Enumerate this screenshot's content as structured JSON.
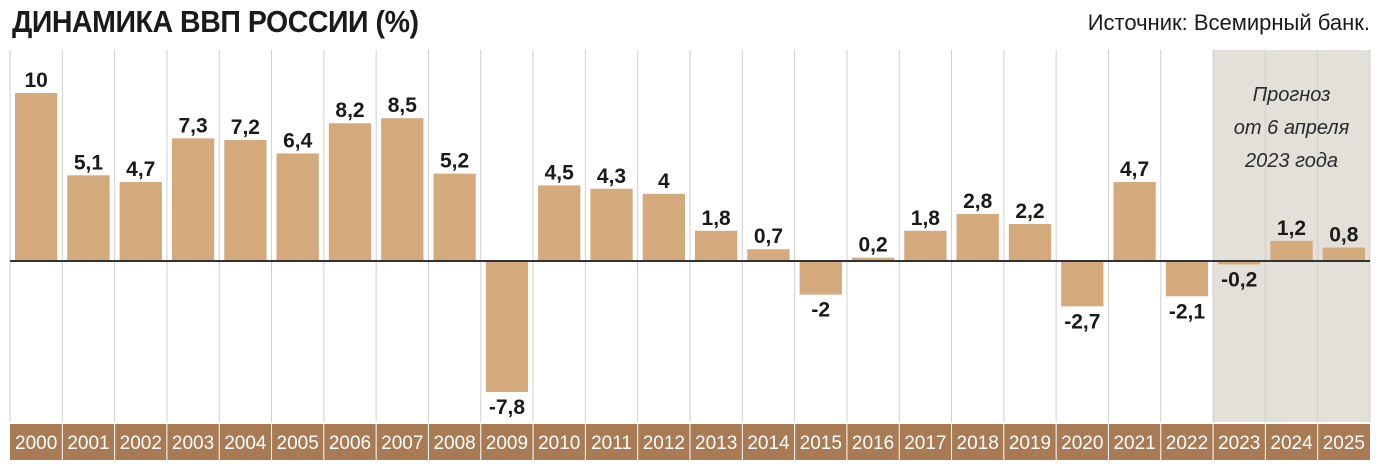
{
  "header": {
    "title": "ДИНАМИКА ВВП РОССИИ (%)",
    "source": "Источник: Всемирный банк."
  },
  "forecast": {
    "lines": [
      "Прогноз",
      "от 6 апреля",
      "2023 года"
    ],
    "first_year": "2023"
  },
  "colors": {
    "bar": "#d4aa7d",
    "bar_border": "#b8875a",
    "year_band": "#a87b55",
    "forecast_bg": "#e2e0d9",
    "grid": "#cfcfcf",
    "axis": "#333333"
  },
  "chart_data": {
    "type": "bar",
    "title": "ДИНАМИКА ВВП РОССИИ (%)",
    "categories": [
      "2000",
      "2001",
      "2002",
      "2003",
      "2004",
      "2005",
      "2006",
      "2007",
      "2008",
      "2009",
      "2010",
      "2011",
      "2012",
      "2013",
      "2014",
      "2015",
      "2016",
      "2017",
      "2018",
      "2019",
      "2020",
      "2021",
      "2022",
      "2023",
      "2024",
      "2025"
    ],
    "values": [
      10,
      5.1,
      4.7,
      7.3,
      7.2,
      6.4,
      8.2,
      8.5,
      5.2,
      -7.8,
      4.5,
      4.3,
      4,
      1.8,
      0.7,
      -2,
      0.2,
      1.8,
      2.8,
      2.2,
      -2.7,
      4.7,
      -2.1,
      -0.2,
      1.2,
      0.8
    ],
    "value_labels": [
      "10",
      "5,1",
      "4,7",
      "7,3",
      "7,2",
      "6,4",
      "8,2",
      "8,5",
      "5,2",
      "-7,8",
      "4,5",
      "4,3",
      "4",
      "1,8",
      "0,7",
      "-2",
      "0,2",
      "1,8",
      "2,8",
      "2,2",
      "-2,7",
      "4,7",
      "-2,1",
      "-0,2",
      "1,2",
      "0,8"
    ],
    "ylim": [
      -8.5,
      10.5
    ],
    "xlabel": "",
    "ylabel": "",
    "grid": true,
    "legend": "none"
  }
}
